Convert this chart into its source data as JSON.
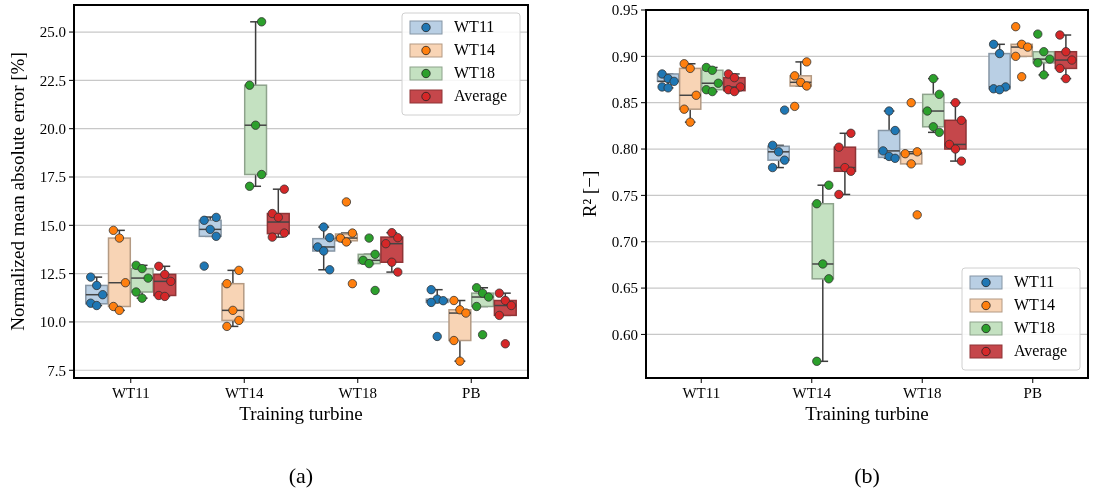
{
  "chart_data": [
    {
      "type": "box",
      "xlabel": "Training turbine",
      "ylabel": "Normalized mean absolute error [%]",
      "categories": [
        "WT11",
        "WT14",
        "WT18",
        "PB"
      ],
      "ylim": [
        7.1,
        26.4
      ],
      "yticks": [
        7.5,
        {
          "value": 10,
          "label": "10.0"
        },
        12.5,
        {
          "value": 15,
          "label": "15.0"
        },
        17.5,
        {
          "value": 20,
          "label": "20.0"
        },
        22.5,
        {
          "value": 25,
          "label": "25.0"
        }
      ],
      "grid": "y",
      "legend": "top right",
      "annotations": [
        "(a)"
      ],
      "series": [
        {
          "type": "box",
          "name": "WT11",
          "color": "#b9cfe4",
          "boxes": [
            {
              "low": 10.85,
              "q1": 10.94,
              "median": 11.41,
              "q3": 11.89,
              "high": 12.32
            },
            {
              "low": 14.43,
              "q1": 14.43,
              "median": 14.79,
              "q3": 15.26,
              "high": 15.43
            },
            {
              "low": 12.7,
              "q1": 13.67,
              "median": 13.88,
              "q3": 14.31,
              "high": 14.91
            },
            {
              "low": 11.01,
              "q1": 11.01,
              "median": 11.1,
              "q3": 11.18,
              "high": 11.67
            }
          ]
        },
        {
          "type": "box",
          "name": "WT14",
          "color": "#f8d4b5",
          "boxes": [
            {
              "low": 10.6,
              "q1": 10.8,
              "median": 12.03,
              "q3": 14.34,
              "high": 14.74
            },
            {
              "low": 9.77,
              "q1": 10.08,
              "median": 10.6,
              "q3": 11.98,
              "high": 12.67
            },
            {
              "low": 14.14,
              "q1": 14.2,
              "median": 14.34,
              "q3": 14.55,
              "high": 14.6
            },
            {
              "low": 7.97,
              "q1": 9.04,
              "median": 10.46,
              "q3": 10.63,
              "high": 11.11
            }
          ]
        },
        {
          "type": "box",
          "name": "WT18",
          "color": "#c4e1c1",
          "boxes": [
            {
              "low": 11.23,
              "q1": 11.55,
              "median": 12.27,
              "q3": 12.76,
              "high": 12.93
            },
            {
              "low": 17.02,
              "q1": 17.63,
              "median": 20.18,
              "q3": 22.25,
              "high": 25.53
            },
            {
              "low": 13.02,
              "q1": 13.02,
              "median": 13.19,
              "q3": 13.5,
              "high": 13.5
            },
            {
              "low": 10.8,
              "q1": 10.8,
              "median": 11.29,
              "q3": 11.49,
              "high": 11.77
            }
          ]
        },
        {
          "type": "box",
          "name": "Average",
          "color": "#c5474b",
          "boxes": [
            {
              "low": 11.32,
              "q1": 11.37,
              "median": 12.1,
              "q3": 12.46,
              "high": 12.88
            },
            {
              "low": 14.39,
              "q1": 14.57,
              "median": 15.17,
              "q3": 15.61,
              "high": 16.87
            },
            {
              "low": 12.58,
              "q1": 13.09,
              "median": 14.05,
              "q3": 14.39,
              "high": 14.62
            },
            {
              "low": 10.34,
              "q1": 10.34,
              "median": 10.85,
              "q3": 11.11,
              "high": 11.49
            }
          ]
        },
        {
          "type": "scatter",
          "color": "#1f77b4",
          "x": [
            "WT11",
            "WT11",
            "WT11",
            "WT11",
            "WT11",
            "WT14",
            "WT14",
            "WT14",
            "WT14",
            "WT14",
            "WT18",
            "WT18",
            "WT18",
            "WT18",
            "WT18",
            "PB",
            "PB",
            "PB",
            "PB",
            "PB"
          ],
          "values": [
            12.32,
            11.89,
            11.41,
            10.97,
            10.85,
            15.41,
            15.26,
            14.79,
            14.43,
            12.89,
            14.91,
            14.36,
            13.88,
            13.67,
            12.7,
            11.67,
            11.18,
            11.1,
            11.01,
            9.25
          ]
        },
        {
          "type": "scatter",
          "color": "#ff7f0e",
          "x": [
            "WT11",
            "WT11",
            "WT11",
            "WT11",
            "WT11",
            "WT14",
            "WT14",
            "WT14",
            "WT14",
            "WT14",
            "WT18",
            "WT18",
            "WT18",
            "WT18",
            "WT18",
            "PB",
            "PB",
            "PB",
            "PB",
            "PB"
          ],
          "values": [
            14.74,
            14.34,
            12.03,
            10.8,
            10.6,
            12.67,
            11.98,
            10.6,
            10.08,
            9.77,
            16.21,
            14.6,
            14.34,
            14.14,
            11.98,
            11.11,
            10.63,
            10.46,
            9.04,
            7.97
          ]
        },
        {
          "type": "scatter",
          "color": "#2ca02c",
          "x": [
            "WT11",
            "WT11",
            "WT11",
            "WT11",
            "WT11",
            "WT14",
            "WT14",
            "WT14",
            "WT14",
            "WT14",
            "WT18",
            "WT18",
            "WT18",
            "WT18",
            "WT18",
            "PB",
            "PB",
            "PB",
            "PB",
            "PB"
          ],
          "values": [
            12.93,
            12.76,
            12.27,
            11.55,
            11.23,
            25.53,
            22.25,
            20.18,
            17.63,
            17.02,
            14.34,
            13.5,
            13.19,
            13.02,
            11.63,
            11.77,
            11.49,
            11.29,
            10.8,
            9.34
          ]
        },
        {
          "type": "scatter",
          "color": "#d62728",
          "x": [
            "WT11",
            "WT11",
            "WT11",
            "WT11",
            "WT11",
            "WT14",
            "WT14",
            "WT14",
            "WT14",
            "WT14",
            "WT18",
            "WT18",
            "WT18",
            "WT18",
            "WT18",
            "PB",
            "PB",
            "PB",
            "PB",
            "PB"
          ],
          "values": [
            12.88,
            12.46,
            12.1,
            11.37,
            11.32,
            16.87,
            15.61,
            15.41,
            14.6,
            14.39,
            14.62,
            14.36,
            14.05,
            13.09,
            12.58,
            11.49,
            11.11,
            10.85,
            10.34,
            8.87
          ]
        }
      ]
    },
    {
      "type": "box",
      "xlabel": "Training turbine",
      "ylabel": "R² [−]",
      "categories": [
        "WT11",
        "WT14",
        "WT18",
        "PB"
      ],
      "ylim": [
        0.553,
        0.95
      ],
      "yticks": [
        {
          "value": 0.6,
          "label": "0.60"
        },
        0.65,
        {
          "value": 0.7,
          "label": "0.70"
        },
        0.75,
        {
          "value": 0.8,
          "label": "0.80"
        },
        0.85,
        {
          "value": 0.9,
          "label": "0.90"
        },
        0.95
      ],
      "grid": "y",
      "legend": "bottom right",
      "annotations": [
        "(b)"
      ],
      "series": [
        {
          "type": "box",
          "name": "WT11",
          "color": "#b9cfe4",
          "boxes": [
            {
              "low": 0.866,
              "q1": 0.873,
              "median": 0.873,
              "q3": 0.881,
              "high": 0.881
            },
            {
              "low": 0.78,
              "q1": 0.788,
              "median": 0.797,
              "q3": 0.803,
              "high": 0.804
            },
            {
              "low": 0.79,
              "q1": 0.791,
              "median": 0.798,
              "q3": 0.82,
              "high": 0.841
            },
            {
              "low": 0.864,
              "q1": 0.865,
              "median": 0.867,
              "q3": 0.903,
              "high": 0.913
            }
          ]
        },
        {
          "type": "box",
          "name": "WT14",
          "color": "#f8d4b5",
          "boxes": [
            {
              "low": 0.829,
              "q1": 0.843,
              "median": 0.858,
              "q3": 0.887,
              "high": 0.892
            },
            {
              "low": 0.868,
              "q1": 0.868,
              "median": 0.872,
              "q3": 0.879,
              "high": 0.894
            },
            {
              "low": 0.784,
              "q1": 0.784,
              "median": 0.795,
              "q3": 0.796,
              "high": 0.797
            },
            {
              "low": 0.9,
              "q1": 0.9,
              "median": 0.91,
              "q3": 0.913,
              "high": 0.913
            }
          ]
        },
        {
          "type": "box",
          "name": "WT18",
          "color": "#c4e1c1",
          "boxes": [
            {
              "low": 0.862,
              "q1": 0.864,
              "median": 0.871,
              "q3": 0.885,
              "high": 0.888
            },
            {
              "low": 0.571,
              "q1": 0.66,
              "median": 0.676,
              "q3": 0.741,
              "high": 0.761
            },
            {
              "low": 0.818,
              "q1": 0.824,
              "median": 0.841,
              "q3": 0.859,
              "high": 0.876
            },
            {
              "low": 0.88,
              "q1": 0.893,
              "median": 0.897,
              "q3": 0.905,
              "high": 0.905
            }
          ]
        },
        {
          "type": "box",
          "name": "Average",
          "color": "#c5474b",
          "boxes": [
            {
              "low": 0.862,
              "q1": 0.863,
              "median": 0.867,
              "q3": 0.877,
              "high": 0.881
            },
            {
              "low": 0.751,
              "q1": 0.776,
              "median": 0.78,
              "q3": 0.802,
              "high": 0.817
            },
            {
              "low": 0.787,
              "q1": 0.8,
              "median": 0.805,
              "q3": 0.831,
              "high": 0.85
            },
            {
              "low": 0.876,
              "q1": 0.887,
              "median": 0.896,
              "q3": 0.905,
              "high": 0.923
            }
          ]
        },
        {
          "type": "scatter",
          "color": "#1f77b4",
          "x": [
            "WT11",
            "WT11",
            "WT11",
            "WT11",
            "WT11",
            "WT14",
            "WT14",
            "WT14",
            "WT14",
            "WT14",
            "WT18",
            "WT18",
            "WT18",
            "WT18",
            "WT18",
            "PB",
            "PB",
            "PB",
            "PB",
            "PB"
          ],
          "values": [
            0.881,
            0.876,
            0.873,
            0.867,
            0.866,
            0.842,
            0.804,
            0.797,
            0.788,
            0.78,
            0.841,
            0.82,
            0.798,
            0.792,
            0.79,
            0.913,
            0.903,
            0.867,
            0.865,
            0.864
          ]
        },
        {
          "type": "scatter",
          "color": "#ff7f0e",
          "x": [
            "WT11",
            "WT11",
            "WT11",
            "WT11",
            "WT11",
            "WT14",
            "WT14",
            "WT14",
            "WT14",
            "WT14",
            "WT18",
            "WT18",
            "WT18",
            "WT18",
            "WT18",
            "PB",
            "PB",
            "PB",
            "PB",
            "PB"
          ],
          "values": [
            0.892,
            0.887,
            0.858,
            0.843,
            0.829,
            0.894,
            0.879,
            0.872,
            0.868,
            0.846,
            0.85,
            0.797,
            0.795,
            0.784,
            0.729,
            0.932,
            0.913,
            0.91,
            0.9,
            0.878
          ]
        },
        {
          "type": "scatter",
          "color": "#2ca02c",
          "x": [
            "WT11",
            "WT11",
            "WT11",
            "WT11",
            "WT11",
            "WT14",
            "WT14",
            "WT14",
            "WT14",
            "WT14",
            "WT18",
            "WT18",
            "WT18",
            "WT18",
            "WT18",
            "PB",
            "PB",
            "PB",
            "PB",
            "PB"
          ],
          "values": [
            0.888,
            0.885,
            0.871,
            0.864,
            0.862,
            0.761,
            0.741,
            0.676,
            0.66,
            0.571,
            0.876,
            0.859,
            0.841,
            0.824,
            0.818,
            0.924,
            0.905,
            0.897,
            0.893,
            0.88
          ]
        },
        {
          "type": "scatter",
          "color": "#d62728",
          "x": [
            "WT11",
            "WT11",
            "WT11",
            "WT11",
            "WT11",
            "WT14",
            "WT14",
            "WT14",
            "WT14",
            "WT14",
            "WT18",
            "WT18",
            "WT18",
            "WT18",
            "WT18",
            "PB",
            "PB",
            "PB",
            "PB",
            "PB"
          ],
          "values": [
            0.881,
            0.877,
            0.867,
            0.864,
            0.862,
            0.817,
            0.802,
            0.78,
            0.776,
            0.751,
            0.85,
            0.831,
            0.805,
            0.8,
            0.787,
            0.923,
            0.905,
            0.896,
            0.887,
            0.876
          ]
        }
      ]
    }
  ]
}
